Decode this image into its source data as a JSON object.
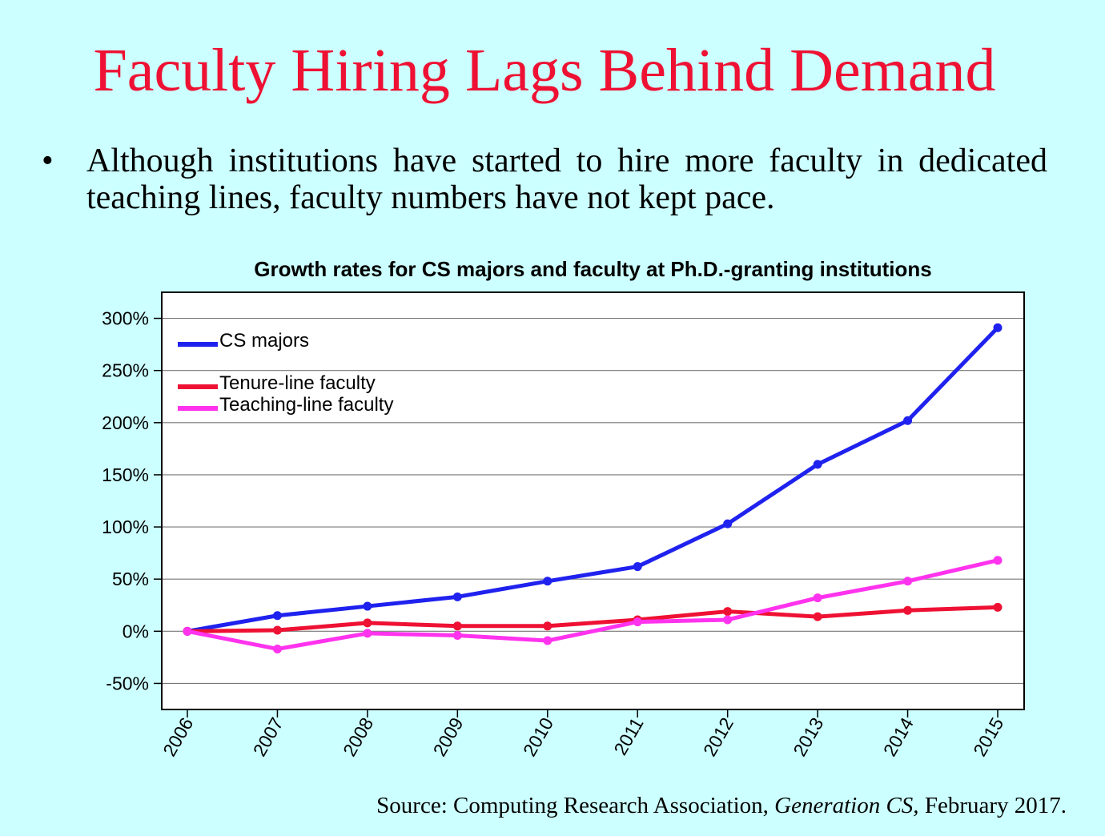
{
  "slide": {
    "title": "Faculty Hiring Lags Behind Demand",
    "bullet_symbol": "•",
    "bullet_text": "Although institutions have started to hire more faculty in dedicated teaching lines, faculty numbers have not kept pace.",
    "source_prefix": "Source: Computing Research Association, ",
    "source_italic": "Generation CS,",
    "source_suffix": " February 2017."
  },
  "chart_data": {
    "type": "line",
    "title": "Growth rates for CS majors and faculty at Ph.D.-granting institutions",
    "x": [
      "2006",
      "2007",
      "2008",
      "2009",
      "2010",
      "2011",
      "2012",
      "2013",
      "2014",
      "2015"
    ],
    "ylim": [
      -75,
      325
    ],
    "yticks": [
      -50,
      0,
      50,
      100,
      150,
      200,
      250,
      300
    ],
    "ytick_labels": [
      "-50%",
      "0%",
      "50%",
      "100%",
      "150%",
      "200%",
      "250%",
      "300%"
    ],
    "grid": true,
    "legend_position": "top-left",
    "series": [
      {
        "name": "CS majors",
        "color": "#1f22ee",
        "values": [
          0,
          15,
          24,
          33,
          48,
          62,
          103,
          160,
          202,
          291
        ]
      },
      {
        "name": "Tenure-line faculty",
        "color": "#ee1133",
        "values": [
          0,
          1,
          8,
          5,
          5,
          11,
          19,
          14,
          20,
          23
        ]
      },
      {
        "name": "Teaching-line faculty",
        "color": "#ff33ee",
        "values": [
          0,
          -17,
          -2,
          -4,
          -9,
          9,
          11,
          32,
          48,
          68
        ]
      }
    ]
  }
}
